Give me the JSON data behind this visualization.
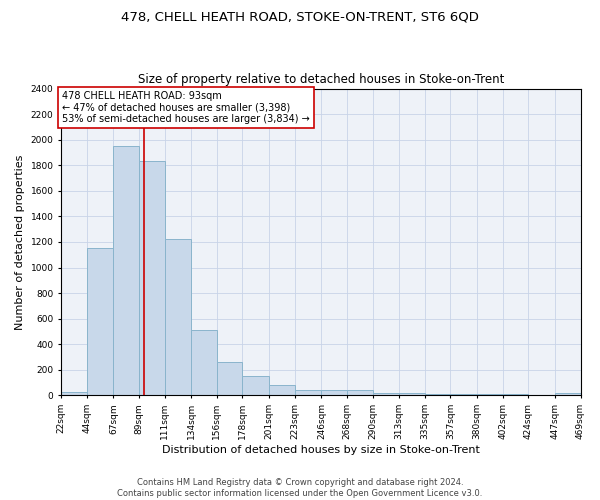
{
  "title": "478, CHELL HEATH ROAD, STOKE-ON-TRENT, ST6 6QD",
  "subtitle": "Size of property relative to detached houses in Stoke-on-Trent",
  "xlabel": "Distribution of detached houses by size in Stoke-on-Trent",
  "ylabel": "Number of detached properties",
  "bin_edges": [
    22,
    44,
    67,
    89,
    111,
    134,
    156,
    178,
    201,
    223,
    246,
    268,
    290,
    313,
    335,
    357,
    380,
    402,
    424,
    447,
    469
  ],
  "bar_heights": [
    30,
    1150,
    1950,
    1830,
    1220,
    510,
    265,
    150,
    85,
    45,
    40,
    40,
    20,
    20,
    15,
    10,
    10,
    8,
    5,
    20
  ],
  "bar_color": "#c8d8ea",
  "bar_edge_color": "#8ab4cc",
  "bar_edge_width": 0.7,
  "property_sqm": 93,
  "red_line_color": "#cc0000",
  "ylim": [
    0,
    2400
  ],
  "yticks": [
    0,
    200,
    400,
    600,
    800,
    1000,
    1200,
    1400,
    1600,
    1800,
    2000,
    2200,
    2400
  ],
  "annotation_title": "478 CHELL HEATH ROAD: 93sqm",
  "annotation_line1": "← 47% of detached houses are smaller (3,398)",
  "annotation_line2": "53% of semi-detached houses are larger (3,834) →",
  "annotation_box_color": "#ffffff",
  "annotation_border_color": "#cc0000",
  "grid_color": "#c8d4e8",
  "background_color": "#eef2f8",
  "footer_line1": "Contains HM Land Registry data © Crown copyright and database right 2024.",
  "footer_line2": "Contains public sector information licensed under the Open Government Licence v3.0.",
  "title_fontsize": 9.5,
  "subtitle_fontsize": 8.5,
  "xlabel_fontsize": 8,
  "ylabel_fontsize": 8,
  "tick_fontsize": 6.5,
  "annotation_fontsize": 7,
  "footer_fontsize": 6
}
